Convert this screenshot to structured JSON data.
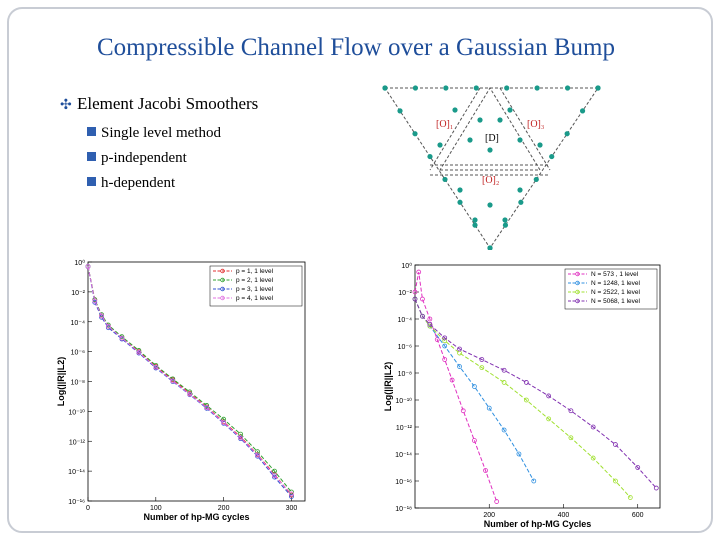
{
  "header": {
    "title": "Compressible Channel Flow over a Gaussian Bump"
  },
  "bullets": {
    "main": "Element Jacobi Smoothers",
    "sub": [
      "Single level method",
      "p-independent",
      "h-dependent"
    ]
  },
  "diagram": {
    "labels": [
      "[O]₁",
      "[D]",
      "[O]₃",
      "[O]₂"
    ]
  },
  "chart_data": [
    {
      "type": "line",
      "log_scale": true,
      "x_label": "Number of hp-MG cycles",
      "y_label": "Log(||R||L2)",
      "xlim": [
        0,
        320
      ],
      "xticks": [
        0,
        100,
        200,
        300
      ],
      "ylim": [
        1e-16,
        1
      ],
      "yticks": [
        {
          "value": 1,
          "label": "10⁰"
        },
        {
          "value": 0.01,
          "label": "10⁻²"
        },
        {
          "value": 0.0001,
          "label": "10⁻⁴"
        },
        {
          "value": 1e-06,
          "label": "10⁻⁶"
        },
        {
          "value": 1e-08,
          "label": "10⁻⁸"
        },
        {
          "value": 1e-10,
          "label": "10⁻¹⁰"
        },
        {
          "value": 1e-12,
          "label": "10⁻¹²"
        },
        {
          "value": 1e-14,
          "label": "10⁻¹⁴"
        },
        {
          "value": 1e-16,
          "label": "10⁻¹⁶"
        }
      ],
      "legend": "top-right",
      "x": [
        0,
        10,
        20,
        30,
        50,
        75,
        100,
        125,
        150,
        175,
        200,
        225,
        250,
        275,
        300
      ],
      "series": [
        {
          "name": "p = 1, 1 level",
          "color": "#e03030",
          "values": [
            0.5,
            0.003,
            0.00025,
            5e-05,
            8e-06,
            1e-06,
            1e-07,
            1.3e-08,
            1.6e-09,
            2e-10,
            2e-11,
            2e-12,
            1.3e-13,
            6e-15,
            2.5e-16
          ]
        },
        {
          "name": "p = 2, 1 level",
          "color": "#30a030",
          "values": [
            0.5,
            0.003,
            0.0003,
            6e-05,
            1e-05,
            1.2e-06,
            1.2e-07,
            1.5e-08,
            2e-09,
            2.5e-10,
            3e-11,
            3e-12,
            2e-13,
            1e-14,
            4e-16
          ]
        },
        {
          "name": "p = 3, 1 level",
          "color": "#3050d0",
          "values": [
            0.5,
            0.002,
            0.0002,
            4e-05,
            7e-06,
            8e-07,
            8e-08,
            1e-08,
            1.3e-09,
            1.6e-10,
            1.6e-11,
            1.5e-12,
            1e-13,
            4e-15,
            2e-16
          ]
        },
        {
          "name": "p = 4, 1 level",
          "color": "#e070e0",
          "values": [
            0.5,
            0.0025,
            0.00025,
            5e-05,
            8e-06,
            9e-07,
            9e-08,
            1.1e-08,
            1.4e-09,
            1.8e-10,
            1.8e-11,
            1.7e-12,
            1.2e-13,
            5e-15,
            3e-16
          ]
        }
      ]
    },
    {
      "type": "line",
      "log_scale": true,
      "x_label": "Number of hp-MG Cycles",
      "y_label": "Log(||R||L2)",
      "xlim": [
        0,
        660
      ],
      "xticks": [
        200,
        400,
        600
      ],
      "ylim": [
        1e-18,
        1
      ],
      "yticks": [
        {
          "value": 1,
          "label": "10⁰"
        },
        {
          "value": 0.01,
          "label": "10⁻²"
        },
        {
          "value": 0.0001,
          "label": "10⁻⁴"
        },
        {
          "value": 1e-06,
          "label": "10⁻⁶"
        },
        {
          "value": 1e-08,
          "label": "10⁻⁸"
        },
        {
          "value": 1e-10,
          "label": "10⁻¹⁰"
        },
        {
          "value": 1e-12,
          "label": "10⁻¹²"
        },
        {
          "value": 1e-14,
          "label": "10⁻¹⁴"
        },
        {
          "value": 1e-16,
          "label": "10⁻¹⁶"
        },
        {
          "value": 1e-18,
          "label": "10⁻¹⁸"
        }
      ],
      "legend": "top-right",
      "series": [
        {
          "name": "N = 573 , 1 level",
          "color": "#e030c0",
          "x": [
            0,
            10,
            20,
            40,
            60,
            80,
            100,
            130,
            160,
            190,
            220
          ],
          "values": [
            0.01,
            0.3,
            0.003,
            0.0001,
            3e-06,
            1e-07,
            3e-09,
            1.6e-11,
            1e-13,
            6e-16,
            3e-18
          ]
        },
        {
          "name": "N = 1248, 1 level",
          "color": "#3090e0",
          "x": [
            0,
            20,
            40,
            80,
            120,
            160,
            200,
            240,
            280,
            320
          ],
          "values": [
            0.003,
            0.00016,
            3e-05,
            1e-06,
            3e-08,
            1e-09,
            2.5e-11,
            6e-13,
            1e-14,
            1e-16
          ]
        },
        {
          "name": "N = 2522, 1 level",
          "color": "#a0e030",
          "x": [
            0,
            20,
            40,
            80,
            120,
            180,
            240,
            300,
            360,
            420,
            480,
            540,
            580
          ],
          "values": [
            0.003,
            0.00016,
            3e-05,
            2.5e-06,
            3e-07,
            2.5e-08,
            2e-09,
            1e-10,
            4e-12,
            1.6e-13,
            5e-15,
            1e-16,
            6e-18
          ]
        },
        {
          "name": "N = 5068, 1 level",
          "color": "#8030b0",
          "x": [
            0,
            20,
            40,
            80,
            120,
            180,
            240,
            300,
            360,
            420,
            480,
            540,
            600,
            650
          ],
          "values": [
            0.003,
            0.00016,
            4e-05,
            4e-06,
            6e-07,
            1e-07,
            1.6e-08,
            2e-09,
            2e-10,
            1.6e-11,
            1e-12,
            5e-14,
            1e-15,
            3e-17
          ]
        }
      ]
    }
  ]
}
